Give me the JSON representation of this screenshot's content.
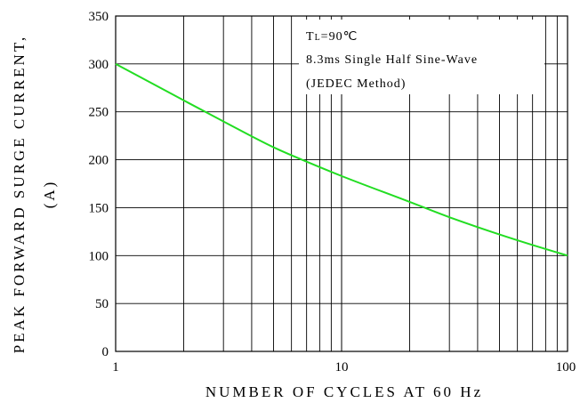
{
  "chart_data": {
    "type": "line",
    "x_scale": "log",
    "xlim": [
      1,
      100
    ],
    "ylim": [
      0,
      350
    ],
    "xlabel": "NUMBER OF CYCLES AT 60 Hz",
    "ylabel_line1": "PEAK FORWARD SURGE CURRENT,",
    "ylabel_line2": "(A)",
    "x_ticks": [
      "1",
      "10",
      "100"
    ],
    "y_ticks": [
      "0",
      "50",
      "100",
      "150",
      "200",
      "250",
      "300",
      "350"
    ],
    "grid": true,
    "annotation": {
      "line1_main": "T",
      "line1_sub": "L",
      "line1_rest": "=90℃",
      "line2": "8.3ms Single Half Sine-Wave",
      "line3": "(JEDEC Method)"
    },
    "series": [
      {
        "color": "#22dd22",
        "x": [
          1,
          2,
          3,
          5,
          7,
          10,
          20,
          30,
          50,
          70,
          100
        ],
        "y": [
          300,
          262,
          240,
          213,
          198,
          183,
          156,
          140,
          122,
          111,
          100
        ]
      }
    ]
  }
}
